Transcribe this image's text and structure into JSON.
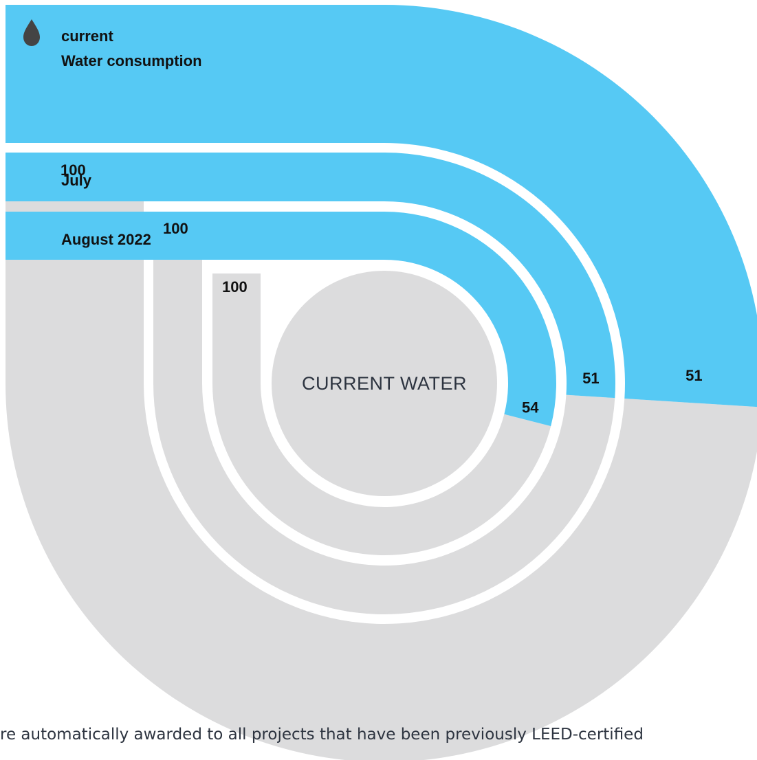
{
  "colors": {
    "score": "#56c9f4",
    "remainder": "#dcdcdd",
    "text": "#111111",
    "center_text": "#2d3440",
    "icon": "#444444"
  },
  "chart_data": {
    "type": "radial-bar",
    "title": "current\nWater consumption",
    "center_label": "CURRENT WATER",
    "max": 100,
    "series": [
      {
        "name": "current\nWater consumption",
        "value": 51,
        "max_label": "100",
        "value_label": "51"
      },
      {
        "name": "July",
        "value": 51,
        "max_label": "100",
        "value_label": "51"
      },
      {
        "name": "August 2022",
        "value": 54,
        "max_label": "100",
        "value_label": "54"
      }
    ]
  },
  "header": {
    "icon": "water-drop-icon",
    "line1": "current",
    "line2": "Water consumption"
  },
  "footnote": "re automatically awarded to all projects that have been previously LEED-certified"
}
